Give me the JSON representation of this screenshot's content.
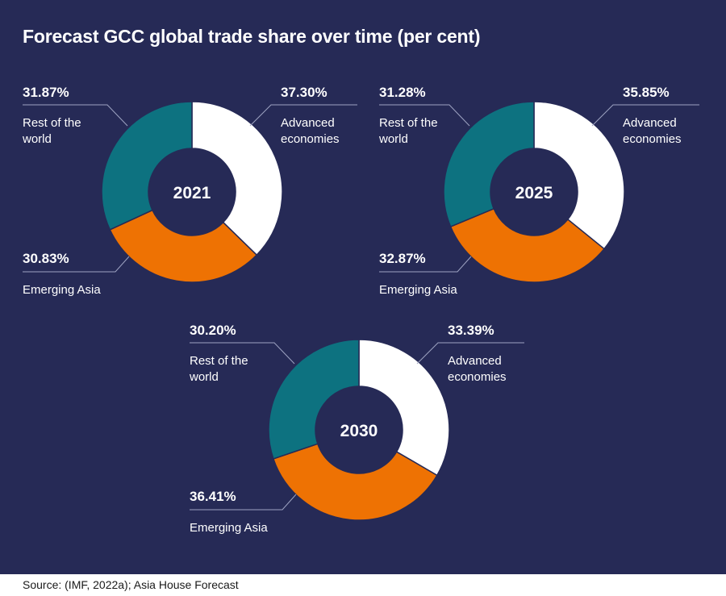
{
  "title": "Forecast GCC global trade share over time (per cent)",
  "source": "Source: (IMF, 2022a); Asia House Forecast",
  "colors": {
    "background": "#262a56",
    "advanced": "#ffffff",
    "emerging": "#ee7203",
    "rest": "#0d7280"
  },
  "chart_data": [
    {
      "type": "pie",
      "center_label": "2021",
      "slices": [
        {
          "name": "Advanced economies",
          "label_lines": [
            "Advanced",
            "economies"
          ],
          "value": 37.3,
          "display": "37.30%",
          "color": "#ffffff"
        },
        {
          "name": "Emerging Asia",
          "label_lines": [
            "Emerging Asia"
          ],
          "value": 30.83,
          "display": "30.83%",
          "color": "#ee7203"
        },
        {
          "name": "Rest of the world",
          "label_lines": [
            "Rest of the",
            "world"
          ],
          "value": 31.87,
          "display": "31.87%",
          "color": "#0d7280"
        }
      ]
    },
    {
      "type": "pie",
      "center_label": "2025",
      "slices": [
        {
          "name": "Advanced economies",
          "label_lines": [
            "Advanced",
            "economies"
          ],
          "value": 35.85,
          "display": "35.85%",
          "color": "#ffffff"
        },
        {
          "name": "Emerging Asia",
          "label_lines": [
            "Emerging Asia"
          ],
          "value": 32.87,
          "display": "32.87%",
          "color": "#ee7203"
        },
        {
          "name": "Rest of the world",
          "label_lines": [
            "Rest of the",
            "world"
          ],
          "value": 31.28,
          "display": "31.28%",
          "color": "#0d7280"
        }
      ]
    },
    {
      "type": "pie",
      "center_label": "2030",
      "slices": [
        {
          "name": "Advanced economies",
          "label_lines": [
            "Advanced",
            "economies"
          ],
          "value": 33.39,
          "display": "33.39%",
          "color": "#ffffff"
        },
        {
          "name": "Emerging Asia",
          "label_lines": [
            "Emerging Asia"
          ],
          "value": 36.41,
          "display": "36.41%",
          "color": "#ee7203"
        },
        {
          "name": "Rest of the world",
          "label_lines": [
            "Rest of the",
            "world"
          ],
          "value": 30.2,
          "display": "30.20%",
          "color": "#0d7280"
        }
      ]
    }
  ]
}
